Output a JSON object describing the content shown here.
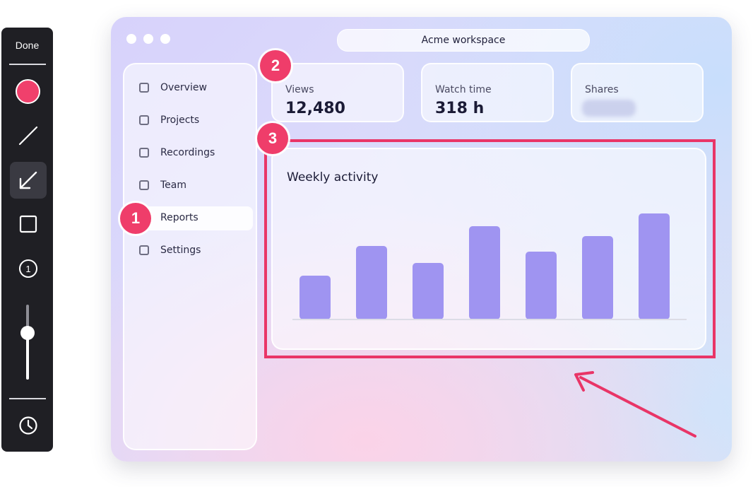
{
  "toolbar": {
    "done_label": "Done",
    "active_color": "#f0406c",
    "tools": [
      "line-icon",
      "arrow-icon",
      "rectangle-icon",
      "step-number-icon"
    ],
    "active_tool": "arrow-icon",
    "step_tool_glyph": "1",
    "stroke_size_level": 0.62,
    "history_icon": "clock-icon"
  },
  "window": {
    "title": "Acme workspace",
    "sidebar": {
      "items": [
        {
          "label": "Overview"
        },
        {
          "label": "Projects"
        },
        {
          "label": "Recordings"
        },
        {
          "label": "Team"
        },
        {
          "label": "Reports"
        },
        {
          "label": "Settings"
        }
      ],
      "active_index": 4
    },
    "stats": [
      {
        "label": "Views",
        "value": "12,480"
      },
      {
        "label": "Watch time",
        "value": "318 h"
      },
      {
        "label": "Shares",
        "value": "",
        "blurred": true
      }
    ]
  },
  "chart_data": {
    "type": "bar",
    "title": "Weekly activity",
    "values": [
      31,
      52,
      40,
      66,
      48,
      59,
      75
    ],
    "ylim": [
      0,
      80
    ],
    "bar_color": "#9f94f1",
    "grid": false
  },
  "annotations": {
    "accent_color": "#e93567",
    "steps": [
      "1",
      "2",
      "3"
    ]
  }
}
